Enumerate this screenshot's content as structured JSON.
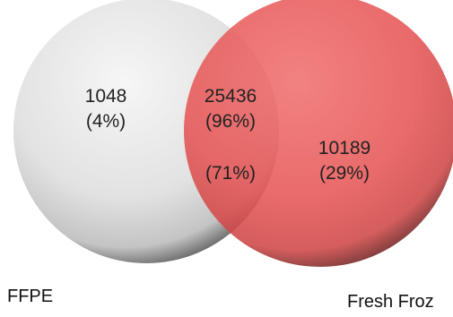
{
  "sets": [
    {
      "name": "FFPE",
      "color": "#d9d9d9"
    },
    {
      "name": "Fresh Froz",
      "color": "#e85656"
    }
  ],
  "regions": {
    "left_only": {
      "count": "1048",
      "percent": "(4%)"
    },
    "overlap": {
      "count": "25436",
      "percent_of_left": "(96%)",
      "percent_of_right": "(71%)"
    },
    "right_only": {
      "count": "10189",
      "percent": "(29%)"
    }
  }
}
